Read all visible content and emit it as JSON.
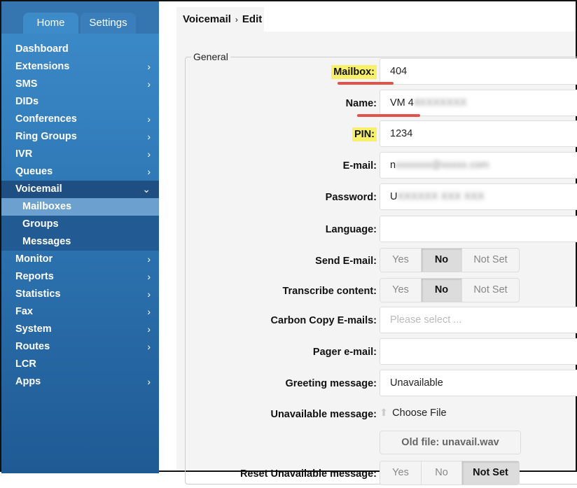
{
  "tabs": {
    "home": "Home",
    "settings": "Settings"
  },
  "menu": [
    "Dashboard",
    "Extensions",
    "SMS",
    "DIDs",
    "Conferences",
    "Ring Groups",
    "IVR",
    "Queues",
    "Voicemail"
  ],
  "menu_chev": [
    false,
    true,
    true,
    false,
    true,
    true,
    true,
    true
  ],
  "submenu": [
    "Mailboxes",
    "Groups",
    "Messages"
  ],
  "menu2": [
    "Monitor",
    "Reports",
    "Statistics",
    "Fax",
    "System",
    "Routes",
    "LCR",
    "Apps"
  ],
  "menu2_chev": [
    true,
    true,
    true,
    true,
    true,
    true,
    false,
    true
  ],
  "breadcrumb": {
    "section": "Voicemail",
    "sep": "›",
    "page": "Edit"
  },
  "form": {
    "legend": "General",
    "mailbox": {
      "label": "Mailbox:",
      "value": "404"
    },
    "name": {
      "label": "Name:",
      "value": "VM 4",
      "blurred": "4XXXXXXX"
    },
    "pin": {
      "label": "PIN:",
      "value": "1234"
    },
    "email": {
      "label": "E-mail:",
      "value": "n",
      "blurred": "xxxxxxx@xxxxx.com"
    },
    "password": {
      "label": "Password:",
      "value": "U",
      "blurred": "XXXXXX XXX XXX"
    },
    "language": {
      "label": "Language:",
      "value": ""
    },
    "send_email": {
      "label": "Send E-mail:",
      "options": [
        "Yes",
        "No",
        "Not Set"
      ],
      "selected": "No"
    },
    "transcribe": {
      "label": "Transcribe content:",
      "options": [
        "Yes",
        "No",
        "Not Set"
      ],
      "selected": "No"
    },
    "cc": {
      "label": "Carbon Copy E-mails:",
      "placeholder": "Please select ..."
    },
    "pager": {
      "label": "Pager e-mail:",
      "value": ""
    },
    "greeting": {
      "label": "Greeting message:",
      "value": "Unavailable"
    },
    "unavail": {
      "label": "Unavailable message:",
      "choose": "Choose File",
      "old_file": "Old file: unavail.wav"
    },
    "reset": {
      "label": "Reset Unavailable message:",
      "options": [
        "Yes",
        "No",
        "Not Set"
      ],
      "selected": "Not Set"
    }
  },
  "colors": {
    "highlight": "#f7f06a",
    "underline": "#e2524a",
    "sidebar": "#3e8cca"
  }
}
